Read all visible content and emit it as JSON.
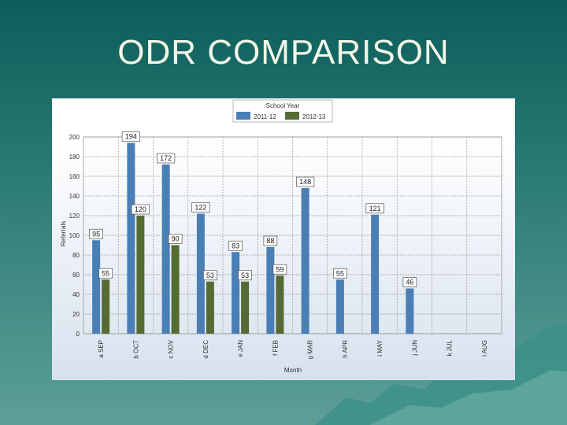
{
  "slide": {
    "title": "ODR COMPARISON"
  },
  "colors": {
    "series_2011": "#4a7fb5",
    "series_2012": "#556b34",
    "background": "#0b5e5a"
  },
  "chart_data": {
    "type": "bar",
    "title": "",
    "xlabel": "Month",
    "ylabel": "Referrals",
    "ylim": [
      0,
      200
    ],
    "yticks": [
      0,
      20,
      40,
      60,
      80,
      100,
      120,
      140,
      160,
      180,
      200
    ],
    "grid": true,
    "legend": {
      "title": "School Year",
      "placement": "top-center"
    },
    "categories": [
      "a SEP",
      "b OCT",
      "c NOV",
      "d DEC",
      "e JAN",
      "f FEB",
      "g MAR",
      "h APR",
      "i MAY",
      "j JUN",
      "k JUL",
      "l AUG"
    ],
    "series": [
      {
        "name": "2011-12",
        "color": "#4a7fb5",
        "values": [
          95,
          194,
          172,
          122,
          83,
          88,
          148,
          55,
          121,
          46,
          null,
          null
        ],
        "labels": [
          "95",
          "194",
          "172",
          "122",
          "83",
          "88",
          "148",
          "55",
          "121",
          "46",
          null,
          null
        ]
      },
      {
        "name": "2012-13",
        "color": "#556b34",
        "values": [
          55,
          120,
          90,
          53,
          53,
          59,
          null,
          null,
          null,
          null,
          null,
          null
        ],
        "labels": [
          "55",
          "120",
          "90",
          "53",
          "53",
          "59",
          null,
          null,
          null,
          null,
          null,
          null
        ]
      }
    ]
  }
}
